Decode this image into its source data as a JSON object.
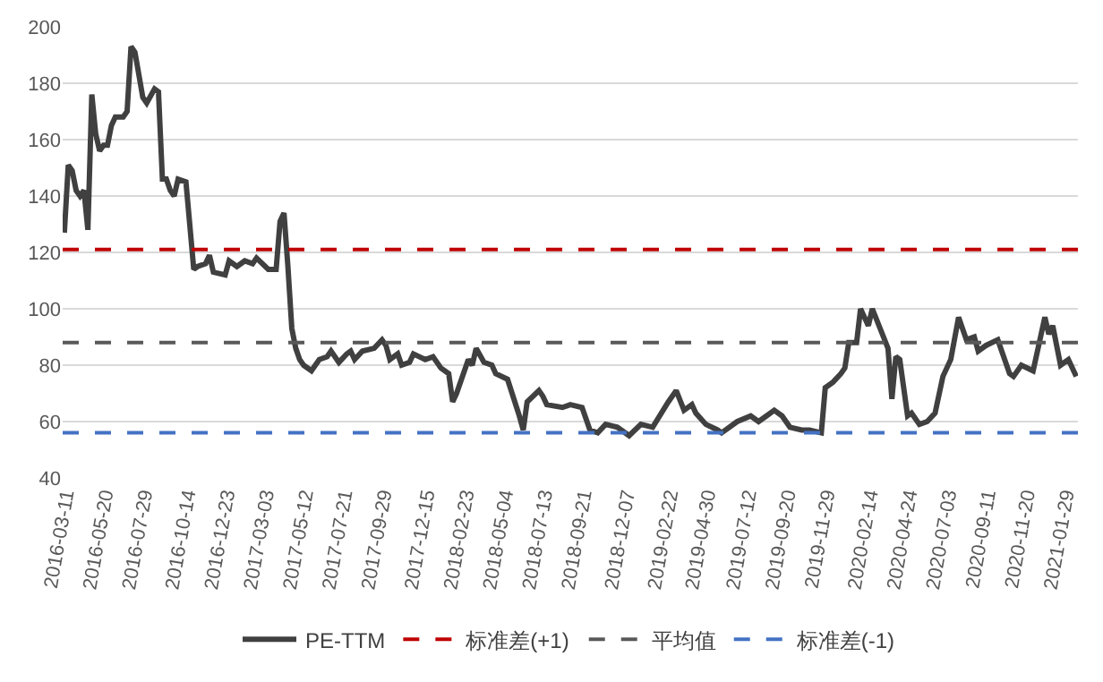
{
  "chart_data": {
    "type": "line",
    "x": [
      "2016-03-11",
      "2016-03-18",
      "2016-03-25",
      "2016-04-01",
      "2016-04-08",
      "2016-04-15",
      "2016-04-22",
      "2016-04-29",
      "2016-05-06",
      "2016-05-13",
      "2016-05-20",
      "2016-05-27",
      "2016-06-03",
      "2016-06-10",
      "2016-06-24",
      "2016-07-01",
      "2016-07-08",
      "2016-07-15",
      "2016-07-29",
      "2016-08-05",
      "2016-08-19",
      "2016-08-26",
      "2016-09-02",
      "2016-09-09",
      "2016-09-16",
      "2016-09-23",
      "2016-09-30",
      "2016-10-14",
      "2016-10-28",
      "2016-11-04",
      "2016-11-18",
      "2016-11-25",
      "2016-12-02",
      "2016-12-23",
      "2016-12-30",
      "2017-01-13",
      "2017-01-27",
      "2017-02-10",
      "2017-02-17",
      "2017-03-10",
      "2017-03-24",
      "2017-03-31",
      "2017-04-07",
      "2017-04-14",
      "2017-04-21",
      "2017-04-28",
      "2017-05-05",
      "2017-05-12",
      "2017-05-26",
      "2017-06-09",
      "2017-06-23",
      "2017-06-30",
      "2017-07-14",
      "2017-07-28",
      "2017-08-04",
      "2017-08-11",
      "2017-08-25",
      "2017-09-15",
      "2017-09-29",
      "2017-10-06",
      "2017-10-13",
      "2017-10-27",
      "2017-11-03",
      "2017-11-17",
      "2017-11-24",
      "2017-12-15",
      "2017-12-29",
      "2018-01-12",
      "2018-01-26",
      "2018-02-02",
      "2018-02-09",
      "2018-03-02",
      "2018-03-09",
      "2018-03-16",
      "2018-03-30",
      "2018-04-13",
      "2018-04-20",
      "2018-05-11",
      "2018-06-01",
      "2018-06-08",
      "2018-06-15",
      "2018-07-06",
      "2018-07-13",
      "2018-07-20",
      "2018-08-17",
      "2018-08-31",
      "2018-09-21",
      "2018-10-05",
      "2018-10-19",
      "2018-11-02",
      "2018-11-23",
      "2018-12-14",
      "2019-01-04",
      "2019-01-25",
      "2019-02-22",
      "2019-03-08",
      "2019-03-22",
      "2019-04-05",
      "2019-04-12",
      "2019-04-30",
      "2019-05-21",
      "2019-05-28",
      "2019-06-25",
      "2019-07-19",
      "2019-08-02",
      "2019-08-16",
      "2019-08-30",
      "2019-09-13",
      "2019-09-27",
      "2019-10-18",
      "2019-11-01",
      "2019-11-22",
      "2019-11-29",
      "2019-12-13",
      "2019-12-27",
      "2020-01-03",
      "2020-01-10",
      "2020-01-24",
      "2020-01-31",
      "2020-02-14",
      "2020-02-21",
      "2020-03-20",
      "2020-03-27",
      "2020-04-03",
      "2020-04-10",
      "2020-04-24",
      "2020-05-01",
      "2020-05-15",
      "2020-05-29",
      "2020-06-12",
      "2020-06-26",
      "2020-07-10",
      "2020-07-24",
      "2020-08-07",
      "2020-08-21",
      "2020-08-28",
      "2020-09-11",
      "2020-10-02",
      "2020-10-23",
      "2020-10-30",
      "2020-11-13",
      "2020-12-04",
      "2020-12-25",
      "2021-01-01",
      "2021-01-08",
      "2021-01-22",
      "2021-02-05",
      "2021-02-19"
    ],
    "series": [
      {
        "name": "PE-TTM",
        "color": "#404040",
        "values": [
          127,
          151,
          149,
          142,
          140,
          142,
          128,
          176,
          162,
          156,
          158,
          158,
          165,
          168,
          168,
          170,
          193,
          191,
          175,
          173,
          178,
          177,
          146,
          146,
          142,
          140,
          146,
          145,
          114,
          115,
          116,
          119,
          113,
          112,
          117,
          115,
          117,
          116,
          118,
          114,
          114,
          131,
          134,
          115,
          93,
          86,
          82,
          80,
          78,
          82,
          83,
          85,
          81,
          84,
          85,
          82,
          85,
          86,
          89,
          87,
          82,
          84,
          80,
          81,
          84,
          82,
          83,
          79,
          77,
          67,
          70,
          82,
          80,
          86,
          81,
          80,
          77,
          75,
          62,
          57,
          67,
          71,
          69,
          66,
          65,
          66,
          65,
          57,
          56,
          59,
          58,
          55,
          59,
          58,
          67,
          71,
          64,
          66,
          63,
          59,
          57,
          56,
          60,
          62,
          60,
          62,
          64,
          62,
          58,
          57,
          57,
          56,
          72,
          74,
          77,
          79,
          88,
          88,
          100,
          94,
          100,
          86,
          68,
          83,
          82,
          62,
          63,
          59,
          60,
          63,
          76,
          82,
          97,
          89,
          90,
          85,
          87,
          89,
          77,
          76,
          80,
          78,
          97,
          91,
          94,
          80,
          82,
          76
        ]
      }
    ],
    "xlim": [
      "2016-03-08",
      "2021-02-22"
    ],
    "xticks": [
      "2016-03-11",
      "2016-05-20",
      "2016-07-29",
      "2016-10-14",
      "2016-12-23",
      "2017-03-03",
      "2017-05-12",
      "2017-07-21",
      "2017-09-29",
      "2017-12-15",
      "2018-02-23",
      "2018-05-04",
      "2018-07-13",
      "2018-09-21",
      "2018-12-07",
      "2019-02-22",
      "2019-04-30",
      "2019-07-12",
      "2019-09-20",
      "2019-11-29",
      "2020-02-14",
      "2020-04-24",
      "2020-07-03",
      "2020-09-11",
      "2020-11-20",
      "2021-01-29"
    ],
    "ylim": [
      40,
      200
    ],
    "yticks": [
      40,
      60,
      80,
      100,
      120,
      140,
      160,
      180,
      200
    ],
    "ref_lines": [
      {
        "axis": "y",
        "value": 121,
        "label": "标准差(+1)",
        "color": "#c00000",
        "line_style": "dashed"
      },
      {
        "axis": "y",
        "value": 88,
        "label": "平均值",
        "color": "#595959",
        "line_style": "dashed"
      },
      {
        "axis": "y",
        "value": 56,
        "label": "标准差(-1)",
        "color": "#4472c4",
        "line_style": "dashed"
      }
    ],
    "grid": "y",
    "legend": "bottom",
    "marker": "none",
    "line_style": "solid"
  }
}
